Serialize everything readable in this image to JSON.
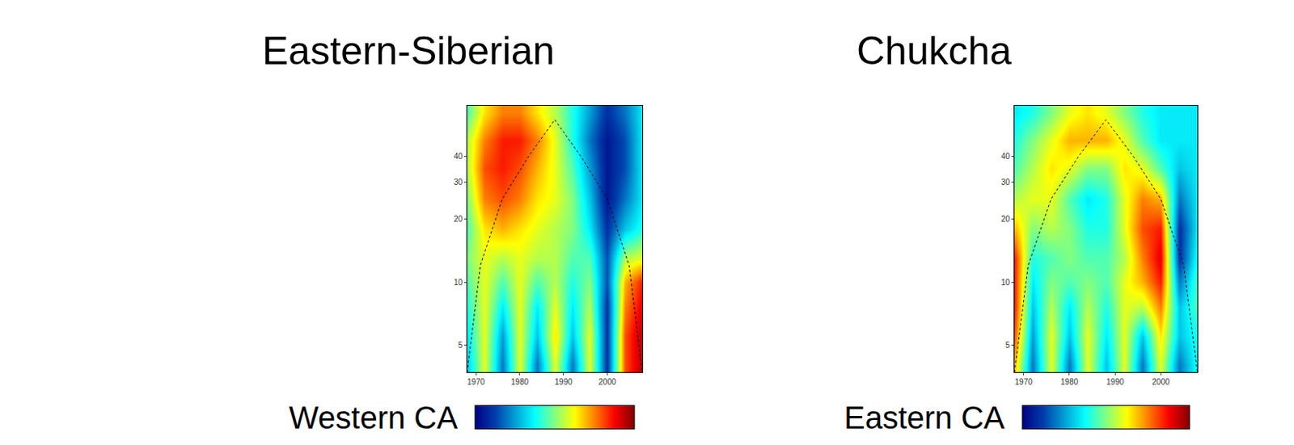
{
  "chart_data": [
    {
      "type": "heatmap",
      "title": "Eastern-Siberian",
      "annotations": [
        "Western CA"
      ],
      "color": "Jet",
      "x": [
        1968,
        1972,
        1976,
        1980,
        1984,
        1988,
        1992,
        1996,
        2000,
        2004,
        2008
      ],
      "y": [
        4,
        5.5,
        7.5,
        10,
        13,
        18,
        25,
        35,
        48,
        65
      ],
      "z": [
        [
          0.3,
          0.6,
          0.2,
          0.6,
          0.2,
          0.6,
          0.2,
          0.6,
          0.1,
          0.8,
          0.95
        ],
        [
          0.35,
          0.6,
          0.25,
          0.6,
          0.3,
          0.65,
          0.3,
          0.6,
          0.1,
          0.8,
          0.95
        ],
        [
          0.4,
          0.6,
          0.35,
          0.6,
          0.35,
          0.6,
          0.35,
          0.55,
          0.1,
          0.75,
          0.9
        ],
        [
          0.45,
          0.6,
          0.45,
          0.6,
          0.45,
          0.55,
          0.4,
          0.5,
          0.15,
          0.7,
          0.85
        ],
        [
          0.5,
          0.6,
          0.55,
          0.6,
          0.55,
          0.55,
          0.45,
          0.45,
          0.15,
          0.55,
          0.6
        ],
        [
          0.45,
          0.65,
          0.7,
          0.65,
          0.6,
          0.55,
          0.5,
          0.35,
          0.1,
          0.3,
          0.4
        ],
        [
          0.5,
          0.75,
          0.8,
          0.75,
          0.65,
          0.6,
          0.5,
          0.3,
          0.05,
          0.2,
          0.35
        ],
        [
          0.55,
          0.8,
          0.85,
          0.8,
          0.7,
          0.6,
          0.45,
          0.25,
          0.05,
          0.15,
          0.35
        ],
        [
          0.55,
          0.75,
          0.85,
          0.85,
          0.75,
          0.6,
          0.4,
          0.2,
          0.05,
          0.15,
          0.35
        ],
        [
          0.45,
          0.65,
          0.75,
          0.75,
          0.65,
          0.55,
          0.4,
          0.25,
          0.1,
          0.2,
          0.35
        ]
      ],
      "zlim": [
        0,
        1
      ],
      "coi": {
        "x": [
          1968,
          1971,
          1976,
          1982,
          1988,
          1994,
          2000,
          2005,
          2008
        ],
        "y": [
          3.7,
          12,
          25,
          40,
          60,
          40,
          25,
          12,
          3.7
        ]
      },
      "xlim": [
        1968,
        2008
      ],
      "xticks": [
        1970,
        1980,
        1990,
        2000
      ],
      "ylim": [
        3.7,
        70
      ],
      "yticks": [
        5,
        10,
        20,
        30,
        40
      ],
      "log": "y"
    },
    {
      "type": "heatmap",
      "title": "Chukcha",
      "annotations": [
        "Eastern CA"
      ],
      "color": "Jet",
      "x": [
        1968,
        1972,
        1976,
        1980,
        1984,
        1988,
        1992,
        1996,
        2000,
        2004,
        2008
      ],
      "y": [
        4,
        5.5,
        7.5,
        10,
        13,
        18,
        25,
        35,
        48,
        65
      ],
      "z": [
        [
          0.7,
          0.2,
          0.6,
          0.2,
          0.6,
          0.3,
          0.6,
          0.2,
          0.6,
          0.2,
          0.4
        ],
        [
          0.8,
          0.25,
          0.6,
          0.3,
          0.6,
          0.35,
          0.6,
          0.3,
          0.65,
          0.3,
          0.4
        ],
        [
          0.85,
          0.3,
          0.55,
          0.35,
          0.55,
          0.4,
          0.6,
          0.55,
          0.75,
          0.3,
          0.45
        ],
        [
          0.85,
          0.35,
          0.5,
          0.45,
          0.5,
          0.45,
          0.6,
          0.7,
          0.85,
          0.2,
          0.45
        ],
        [
          0.85,
          0.4,
          0.45,
          0.5,
          0.45,
          0.45,
          0.55,
          0.75,
          0.9,
          0.1,
          0.4
        ],
        [
          0.7,
          0.5,
          0.55,
          0.5,
          0.4,
          0.4,
          0.6,
          0.8,
          0.85,
          0.1,
          0.35
        ],
        [
          0.55,
          0.6,
          0.6,
          0.45,
          0.35,
          0.4,
          0.6,
          0.75,
          0.7,
          0.2,
          0.35
        ],
        [
          0.45,
          0.55,
          0.65,
          0.6,
          0.5,
          0.5,
          0.65,
          0.6,
          0.45,
          0.3,
          0.35
        ],
        [
          0.4,
          0.5,
          0.6,
          0.7,
          0.7,
          0.7,
          0.6,
          0.45,
          0.35,
          0.35,
          0.35
        ],
        [
          0.35,
          0.4,
          0.5,
          0.6,
          0.65,
          0.6,
          0.5,
          0.4,
          0.35,
          0.35,
          0.35
        ]
      ],
      "zlim": [
        0,
        1
      ],
      "coi": {
        "x": [
          1968,
          1971,
          1976,
          1982,
          1988,
          1994,
          2000,
          2005,
          2008
        ],
        "y": [
          3.7,
          12,
          25,
          40,
          60,
          40,
          25,
          12,
          3.7
        ]
      },
      "xlim": [
        1968,
        2008
      ],
      "xticks": [
        1970,
        1980,
        1990,
        2000
      ],
      "ylim": [
        3.7,
        70
      ],
      "yticks": [
        5,
        10,
        20,
        30,
        40
      ],
      "log": "y"
    }
  ]
}
